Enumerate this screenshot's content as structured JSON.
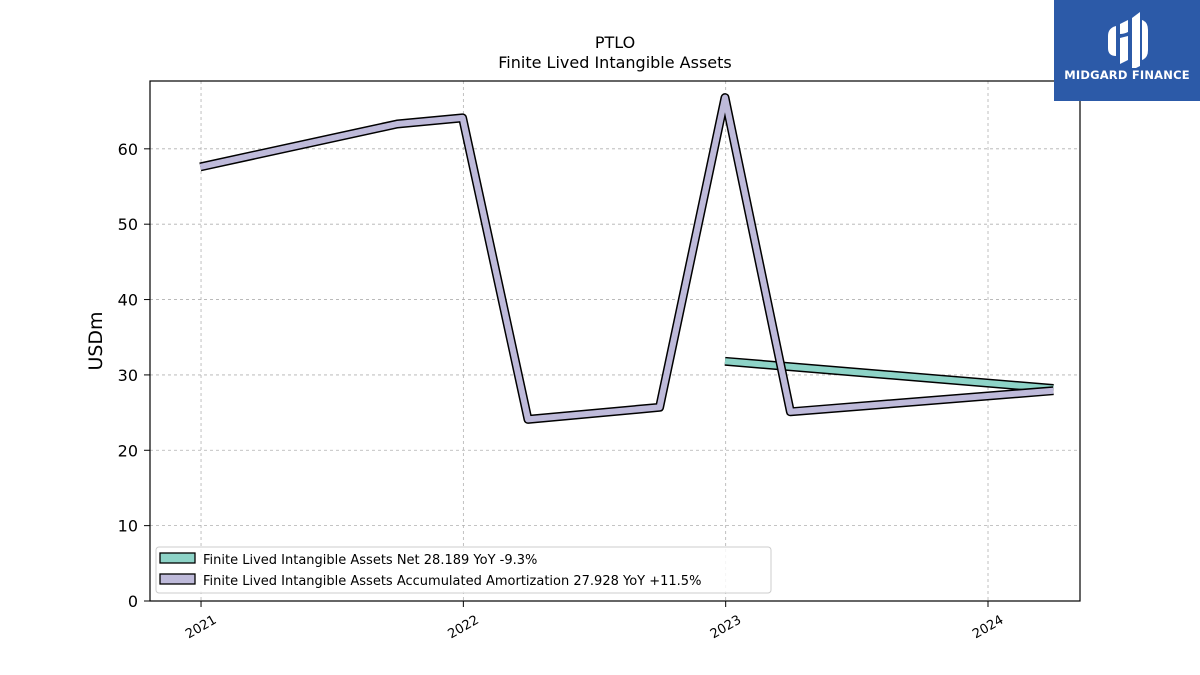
{
  "chart_data": {
    "type": "line",
    "title": "PTLO",
    "subtitle": "Finite Lived Intangible Assets",
    "ylabel": "USDm",
    "xlabel": "",
    "ylim": [
      0,
      69
    ],
    "yticks": [
      0,
      10,
      20,
      30,
      40,
      50,
      60
    ],
    "xlim": [
      "2020-10-22",
      "2024-05-08"
    ],
    "xticks": [
      {
        "date": "2021-01-01",
        "label": "2021"
      },
      {
        "date": "2022-01-01",
        "label": "2022"
      },
      {
        "date": "2023-01-01",
        "label": "2023"
      },
      {
        "date": "2024-01-01",
        "label": "2024"
      }
    ],
    "grid": true,
    "legend_position": "lower-left",
    "series": [
      {
        "name": "Finite Lived Intangible Assets Net",
        "legend_label": "Finite Lived Intangible Assets Net  28.189 YoY -9.3%",
        "color": "#8dd3c7",
        "points": [
          {
            "x": "2022-12-31",
            "y": 31.8
          },
          {
            "x": "2024-04-01",
            "y": 28.2
          }
        ]
      },
      {
        "name": "Finite Lived Intangible Assets Accumulated Amortization",
        "legend_label": "Finite Lived Intangible Assets Accumulated Amortization  27.928 YoY +11.5%",
        "color": "#bebada",
        "points": [
          {
            "x": "2020-12-31",
            "y": 57.6
          },
          {
            "x": "2021-10-01",
            "y": 63.3
          },
          {
            "x": "2021-12-31",
            "y": 64.1
          },
          {
            "x": "2022-04-01",
            "y": 24.1
          },
          {
            "x": "2022-10-01",
            "y": 25.7
          },
          {
            "x": "2022-12-31",
            "y": 66.8
          },
          {
            "x": "2023-04-01",
            "y": 25.1
          },
          {
            "x": "2024-04-01",
            "y": 27.9
          }
        ]
      }
    ]
  },
  "branding": {
    "name": "MIDGARD FINANCE",
    "background": "#2c5aa8"
  }
}
